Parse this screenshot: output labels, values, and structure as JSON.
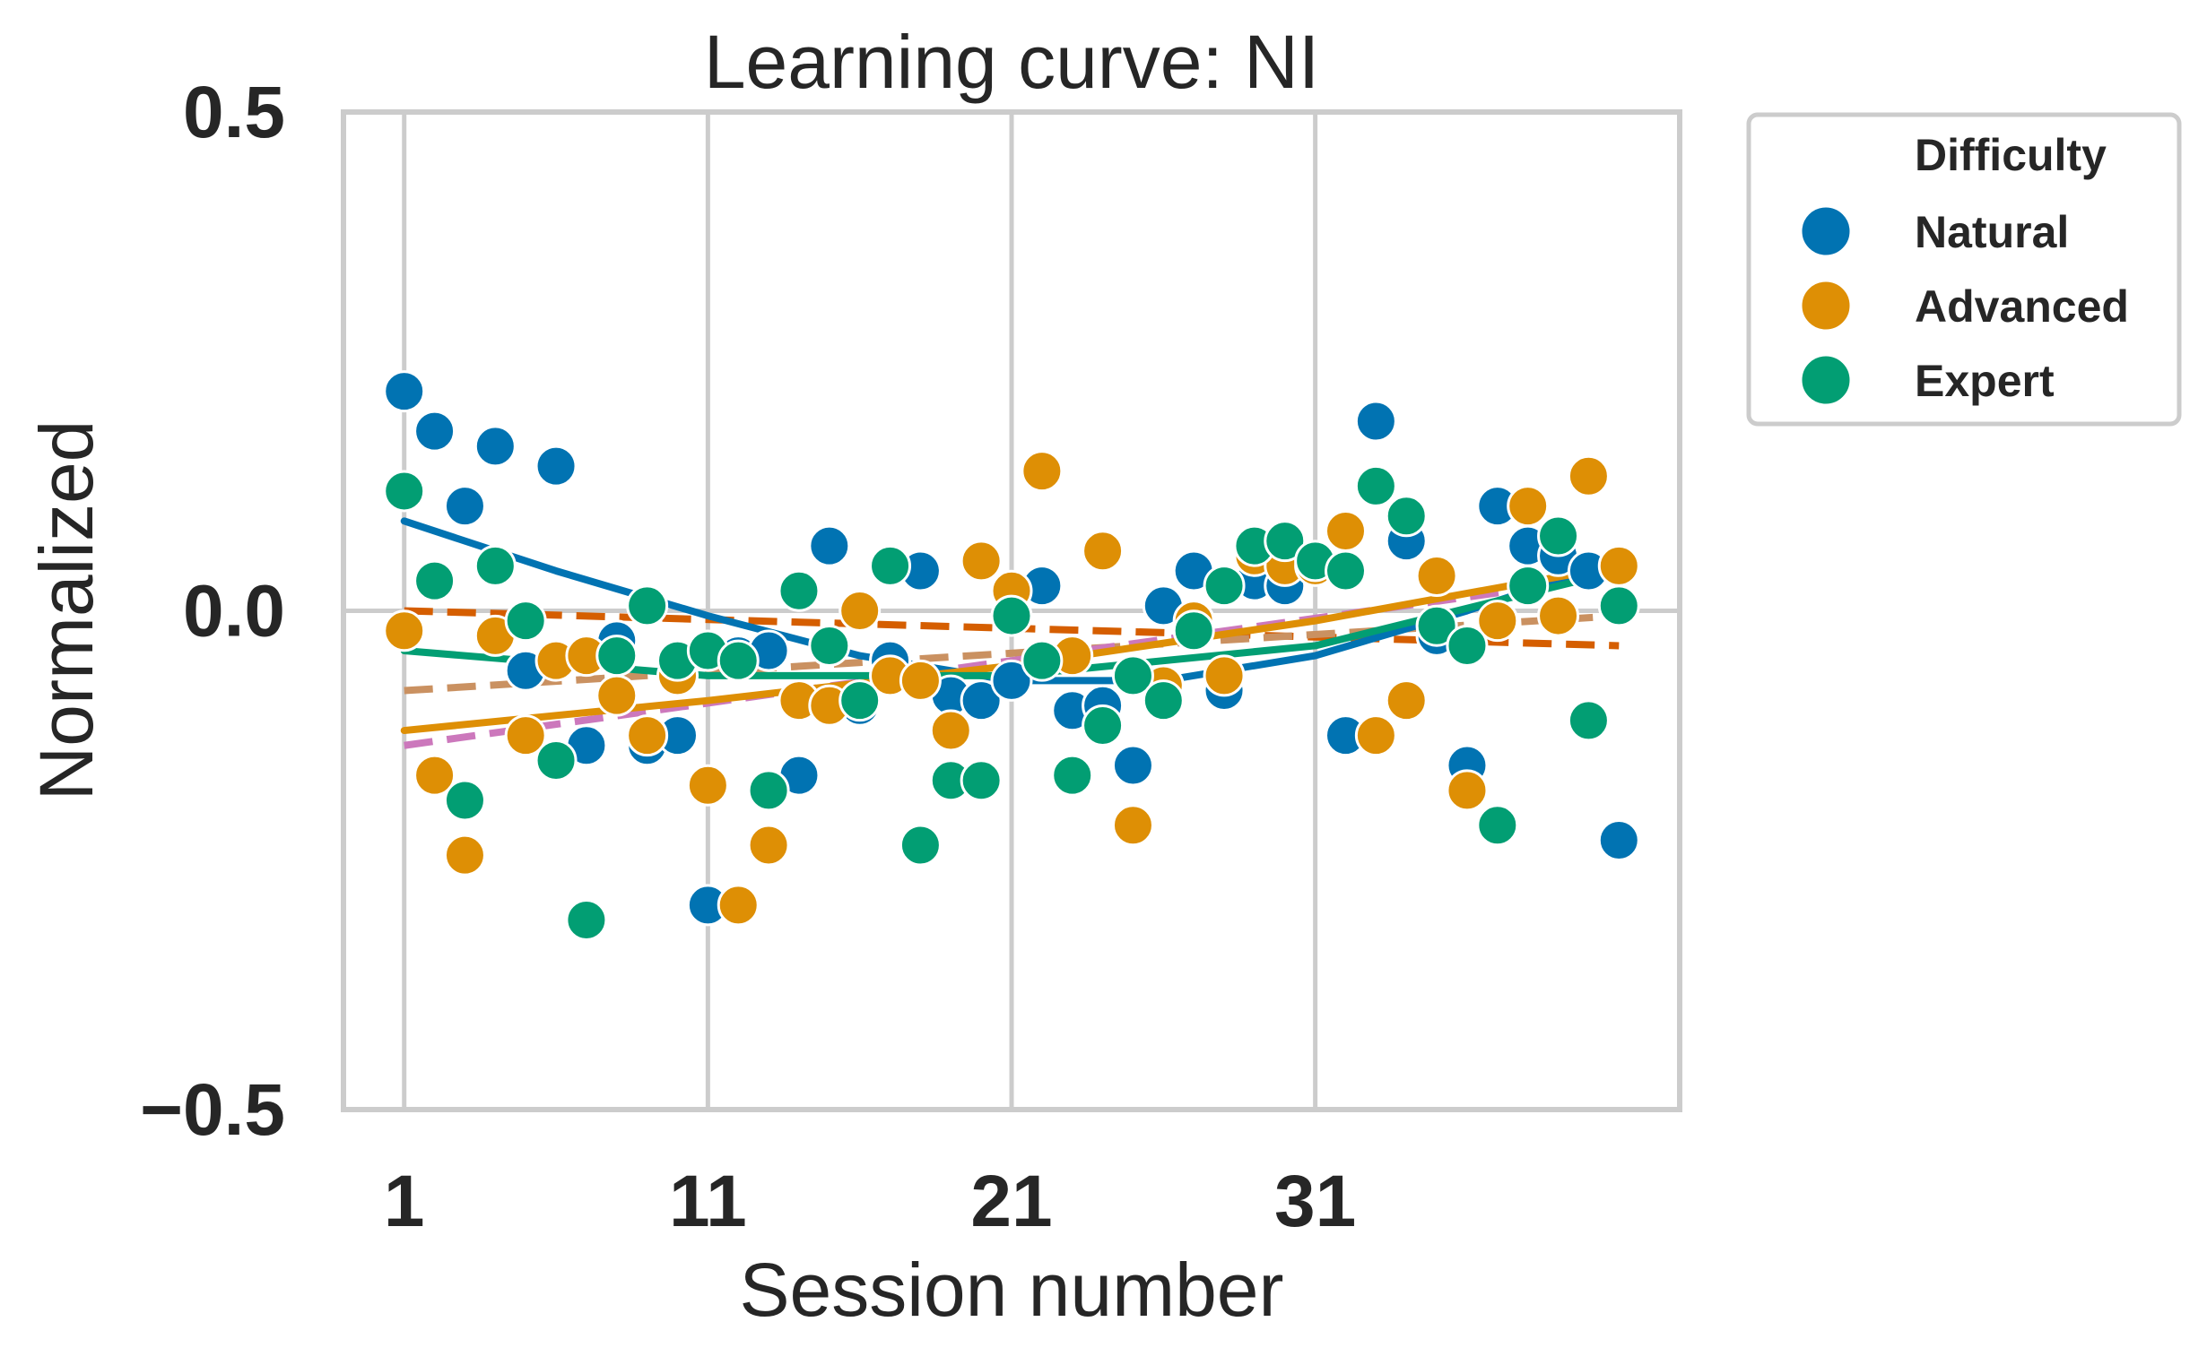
{
  "chart_data": {
    "type": "scatter",
    "title": "Learning curve: NI",
    "xlabel": "Session number",
    "ylabel": "Normalized",
    "xlim": [
      -1,
      43
    ],
    "ylim": [
      -0.5,
      0.5
    ],
    "xticks": [
      1,
      11,
      21,
      31
    ],
    "yticks": [
      0.5,
      0.0,
      -0.5
    ],
    "ytick_labels": [
      "0.5",
      "0.0",
      "−0.5"
    ],
    "grid": true,
    "legend": {
      "title": "Difficulty",
      "placement": "outside-upper-right",
      "entries": [
        "Natural",
        "Advanced",
        "Expert"
      ]
    },
    "series": [
      {
        "name": "Natural",
        "color": "#0173b2",
        "points": [
          [
            1,
            0.22
          ],
          [
            2,
            0.18
          ],
          [
            3,
            0.105
          ],
          [
            4,
            0.165
          ],
          [
            5,
            -0.06
          ],
          [
            6,
            0.145
          ],
          [
            7,
            -0.135
          ],
          [
            8,
            -0.03
          ],
          [
            9,
            -0.135
          ],
          [
            10,
            -0.125
          ],
          [
            11,
            -0.295
          ],
          [
            12,
            -0.045
          ],
          [
            13,
            -0.04
          ],
          [
            14,
            -0.165
          ],
          [
            15,
            0.065
          ],
          [
            16,
            -0.095
          ],
          [
            17,
            -0.05
          ],
          [
            18,
            0.04
          ],
          [
            19,
            -0.085
          ],
          [
            20,
            -0.09
          ],
          [
            21,
            -0.07
          ],
          [
            22,
            0.025
          ],
          [
            23,
            -0.1
          ],
          [
            24,
            -0.095
          ],
          [
            25,
            -0.155
          ],
          [
            26,
            0.005
          ],
          [
            27,
            0.04
          ],
          [
            28,
            -0.08
          ],
          [
            29,
            0.03
          ],
          [
            30,
            0.025
          ],
          [
            31,
            0.05
          ],
          [
            32,
            -0.125
          ],
          [
            33,
            0.19
          ],
          [
            34,
            0.07
          ],
          [
            35,
            -0.025
          ],
          [
            36,
            -0.155
          ],
          [
            37,
            0.105
          ],
          [
            38,
            0.065
          ],
          [
            39,
            0.055
          ],
          [
            40,
            0.04
          ],
          [
            41,
            -0.23
          ]
        ],
        "fit": [
          [
            1,
            0.09
          ],
          [
            6,
            0.04
          ],
          [
            11,
            -0.005
          ],
          [
            16,
            -0.045
          ],
          [
            21,
            -0.07
          ],
          [
            26,
            -0.07
          ],
          [
            31,
            -0.045
          ],
          [
            36,
            0.0
          ],
          [
            41,
            0.05
          ]
        ]
      },
      {
        "name": "Advanced",
        "color": "#de8f05",
        "points": [
          [
            1,
            -0.02
          ],
          [
            2,
            -0.165
          ],
          [
            3,
            -0.245
          ],
          [
            4,
            -0.025
          ],
          [
            5,
            -0.125
          ],
          [
            6,
            -0.05
          ],
          [
            7,
            -0.045
          ],
          [
            8,
            -0.085
          ],
          [
            9,
            -0.125
          ],
          [
            10,
            -0.065
          ],
          [
            11,
            -0.175
          ],
          [
            12,
            -0.295
          ],
          [
            13,
            -0.235
          ],
          [
            14,
            -0.09
          ],
          [
            15,
            -0.095
          ],
          [
            16,
            0.0
          ],
          [
            17,
            -0.065
          ],
          [
            18,
            -0.07
          ],
          [
            19,
            -0.12
          ],
          [
            20,
            0.05
          ],
          [
            21,
            0.02
          ],
          [
            22,
            0.14
          ],
          [
            23,
            -0.045
          ],
          [
            24,
            0.06
          ],
          [
            25,
            -0.215
          ],
          [
            26,
            -0.075
          ],
          [
            27,
            -0.01
          ],
          [
            28,
            -0.065
          ],
          [
            29,
            0.055
          ],
          [
            30,
            0.045
          ],
          [
            31,
            0.045
          ],
          [
            32,
            0.08
          ],
          [
            33,
            -0.125
          ],
          [
            34,
            -0.09
          ],
          [
            35,
            0.035
          ],
          [
            36,
            -0.18
          ],
          [
            37,
            -0.01
          ],
          [
            38,
            0.105
          ],
          [
            39,
            -0.005
          ],
          [
            40,
            0.135
          ],
          [
            41,
            0.045
          ]
        ],
        "fit": [
          [
            1,
            -0.12
          ],
          [
            11,
            -0.09
          ],
          [
            21,
            -0.055
          ],
          [
            31,
            -0.01
          ],
          [
            41,
            0.045
          ]
        ]
      },
      {
        "name": "Expert",
        "color": "#029e73",
        "points": [
          [
            1,
            0.12
          ],
          [
            2,
            0.03
          ],
          [
            3,
            -0.19
          ],
          [
            4,
            0.045
          ],
          [
            5,
            -0.01
          ],
          [
            6,
            -0.15
          ],
          [
            7,
            -0.31
          ],
          [
            8,
            -0.045
          ],
          [
            9,
            0.005
          ],
          [
            10,
            -0.05
          ],
          [
            11,
            -0.04
          ],
          [
            12,
            -0.05
          ],
          [
            13,
            -0.18
          ],
          [
            14,
            0.02
          ],
          [
            15,
            -0.035
          ],
          [
            16,
            -0.09
          ],
          [
            17,
            0.045
          ],
          [
            18,
            -0.235
          ],
          [
            19,
            -0.17
          ],
          [
            20,
            -0.17
          ],
          [
            21,
            -0.005
          ],
          [
            22,
            -0.05
          ],
          [
            23,
            -0.165
          ],
          [
            24,
            -0.115
          ],
          [
            25,
            -0.065
          ],
          [
            26,
            -0.09
          ],
          [
            27,
            -0.02
          ],
          [
            28,
            0.025
          ],
          [
            29,
            0.065
          ],
          [
            30,
            0.07
          ],
          [
            31,
            0.05
          ],
          [
            32,
            0.04
          ],
          [
            33,
            0.125
          ],
          [
            34,
            0.095
          ],
          [
            35,
            -0.015
          ],
          [
            36,
            -0.035
          ],
          [
            37,
            -0.215
          ],
          [
            38,
            0.025
          ],
          [
            39,
            0.075
          ],
          [
            40,
            -0.11
          ],
          [
            41,
            0.005
          ]
        ],
        "fit": [
          [
            1,
            -0.04
          ],
          [
            11,
            -0.065
          ],
          [
            21,
            -0.065
          ],
          [
            31,
            -0.035
          ],
          [
            41,
            0.04
          ]
        ]
      }
    ],
    "reference_lines": [
      {
        "color": "#d55e00",
        "points": [
          [
            1,
            0.0
          ],
          [
            41,
            -0.035
          ]
        ]
      },
      {
        "color": "#ca9161",
        "points": [
          [
            1,
            -0.08
          ],
          [
            41,
            -0.005
          ]
        ]
      },
      {
        "color": "#cc78bc",
        "points": [
          [
            1,
            -0.135
          ],
          [
            41,
            0.035
          ]
        ]
      }
    ]
  }
}
